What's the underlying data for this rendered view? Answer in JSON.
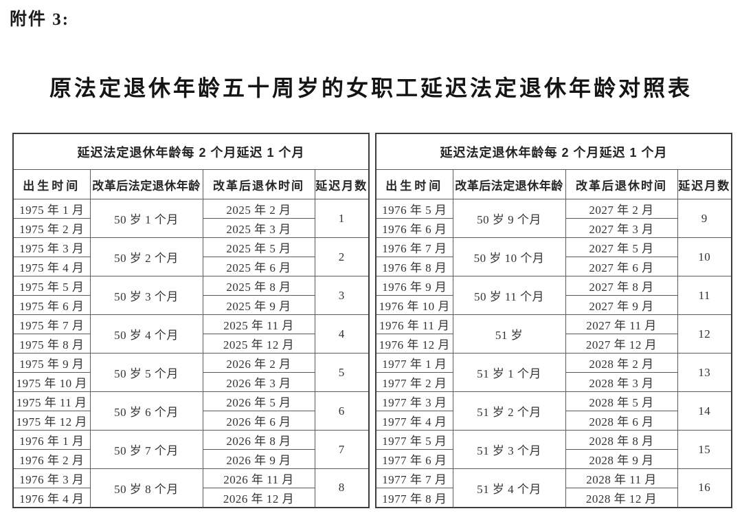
{
  "attachment_label": "附件 3:",
  "title": "原法定退休年龄五十周岁的女职工延迟法定退休年龄对照表",
  "colors": {
    "background": "#ffffff",
    "text": "#333333",
    "title_text": "#141414",
    "border": "#5a5a5a",
    "outer_border": "#3d3d3d"
  },
  "tables": [
    {
      "group_header": "延迟法定退休年龄每 2 个月延迟 1 个月",
      "columns": [
        "出生时间",
        "改革后法定退休年龄",
        "改革后退休时间",
        "延迟月数"
      ],
      "groups": [
        {
          "births": [
            "1975 年 1 月",
            "1975 年 2 月"
          ],
          "age": "50 岁 1 个月",
          "retire": [
            "2025 年 2 月",
            "2025 年 3 月"
          ],
          "delay": "1"
        },
        {
          "births": [
            "1975 年 3 月",
            "1975 年 4 月"
          ],
          "age": "50 岁 2 个月",
          "retire": [
            "2025 年 5 月",
            "2025 年 6 月"
          ],
          "delay": "2"
        },
        {
          "births": [
            "1975 年 5 月",
            "1975 年 6 月"
          ],
          "age": "50 岁 3 个月",
          "retire": [
            "2025 年 8 月",
            "2025 年 9 月"
          ],
          "delay": "3"
        },
        {
          "births": [
            "1975 年 7 月",
            "1975 年 8 月"
          ],
          "age": "50 岁 4 个月",
          "retire": [
            "2025 年 11 月",
            "2025 年 12 月"
          ],
          "delay": "4"
        },
        {
          "births": [
            "1975 年 9 月",
            "1975 年 10 月"
          ],
          "age": "50 岁 5 个月",
          "retire": [
            "2026 年 2 月",
            "2026 年 3 月"
          ],
          "delay": "5"
        },
        {
          "births": [
            "1975 年 11 月",
            "1975 年 12 月"
          ],
          "age": "50 岁 6 个月",
          "retire": [
            "2026 年 5 月",
            "2026 年 6 月"
          ],
          "delay": "6"
        },
        {
          "births": [
            "1976 年 1 月",
            "1976 年 2 月"
          ],
          "age": "50 岁 7 个月",
          "retire": [
            "2026 年 8 月",
            "2026 年 9 月"
          ],
          "delay": "7"
        },
        {
          "births": [
            "1976 年 3 月",
            "1976 年 4 月"
          ],
          "age": "50 岁 8 个月",
          "retire": [
            "2026 年 11 月",
            "2026 年 12 月"
          ],
          "delay": "8"
        }
      ]
    },
    {
      "group_header": "延迟法定退休年龄每 2 个月延迟 1 个月",
      "columns": [
        "出生时间",
        "改革后法定退休年龄",
        "改革后退休时间",
        "延迟月数"
      ],
      "groups": [
        {
          "births": [
            "1976 年 5 月",
            "1976 年 6 月"
          ],
          "age": "50 岁 9 个月",
          "retire": [
            "2027 年 2 月",
            "2027 年 3 月"
          ],
          "delay": "9"
        },
        {
          "births": [
            "1976 年 7 月",
            "1976 年 8 月"
          ],
          "age": "50 岁 10 个月",
          "retire": [
            "2027 年 5 月",
            "2027 年 6 月"
          ],
          "delay": "10"
        },
        {
          "births": [
            "1976 年 9 月",
            "1976 年 10 月"
          ],
          "age": "50 岁 11 个月",
          "retire": [
            "2027 年 8 月",
            "2027 年 9 月"
          ],
          "delay": "11"
        },
        {
          "births": [
            "1976 年 11 月",
            "1976 年 12 月"
          ],
          "age": "51 岁",
          "retire": [
            "2027 年 11 月",
            "2027 年 12 月"
          ],
          "delay": "12"
        },
        {
          "births": [
            "1977 年 1 月",
            "1977 年 2 月"
          ],
          "age": "51 岁 1 个月",
          "retire": [
            "2028 年 2 月",
            "2028 年 3 月"
          ],
          "delay": "13"
        },
        {
          "births": [
            "1977 年 3 月",
            "1977 年 4 月"
          ],
          "age": "51 岁 2 个月",
          "retire": [
            "2028 年 5 月",
            "2028 年 6 月"
          ],
          "delay": "14"
        },
        {
          "births": [
            "1977 年 5 月",
            "1977 年 6 月"
          ],
          "age": "51 岁 3 个月",
          "retire": [
            "2028 年 8 月",
            "2028 年 9 月"
          ],
          "delay": "15"
        },
        {
          "births": [
            "1977 年 7 月",
            "1977 年 8 月"
          ],
          "age": "51 岁 4 个月",
          "retire": [
            "2028 年 11 月",
            "2028 年 12 月"
          ],
          "delay": "16"
        }
      ]
    }
  ]
}
